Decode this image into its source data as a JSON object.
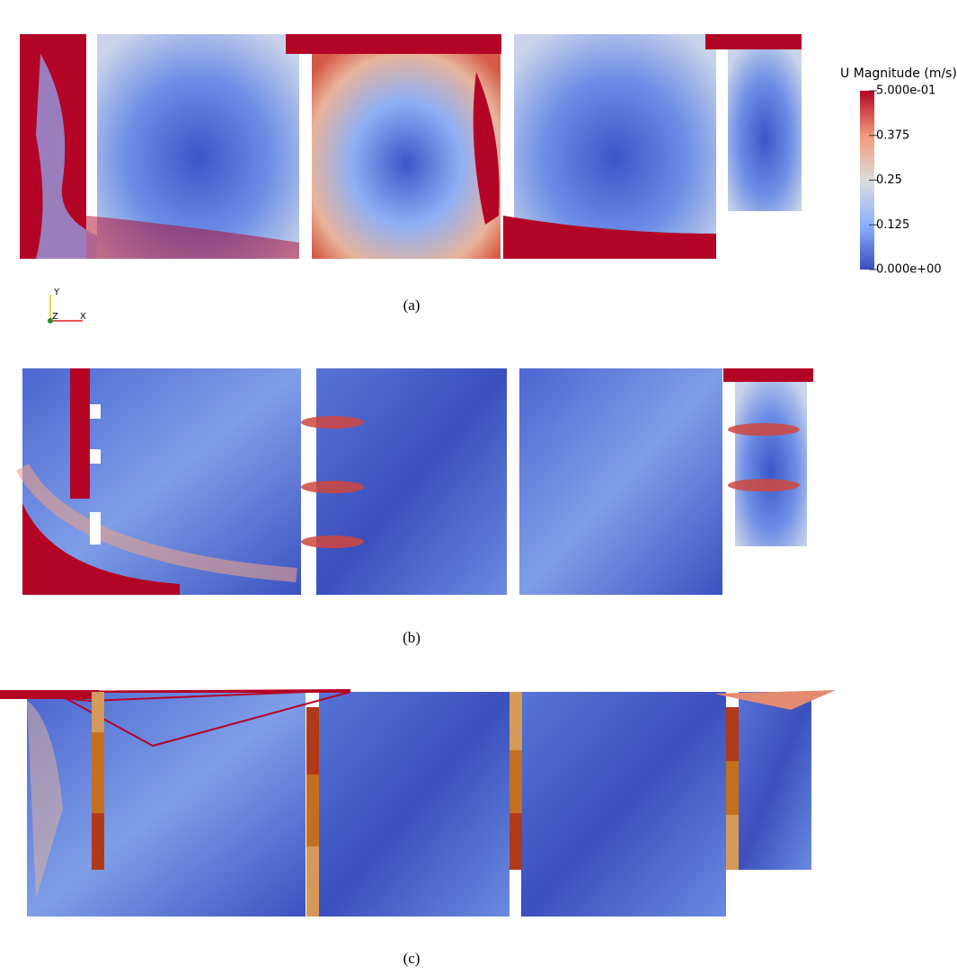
{
  "figure": {
    "colorbar": {
      "title": "U Magnitude (m/s)",
      "lim": [
        0,
        0.5
      ],
      "ticks": [
        {
          "value": 0.5,
          "label": "5.000e-01"
        },
        {
          "value": 0.375,
          "label": "0.375"
        },
        {
          "value": 0.25,
          "label": "0.25"
        },
        {
          "value": 0.125,
          "label": "0.125"
        },
        {
          "value": 0,
          "label": "0.000e+00"
        }
      ]
    },
    "axes_triad": {
      "y": "Y",
      "z": "Z",
      "x": "X"
    },
    "panels": [
      {
        "label": "(a)"
      },
      {
        "label": "(b)"
      },
      {
        "label": "(c)"
      }
    ]
  }
}
